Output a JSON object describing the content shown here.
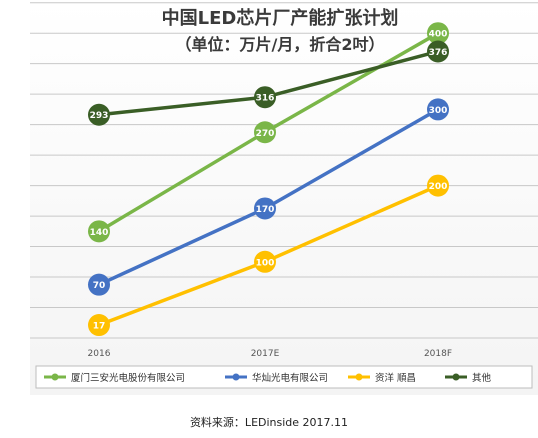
{
  "colors": {
    "xiamen": "#7ab648",
    "huacan": "#4472c4",
    "zisheng": "#ffc000",
    "other": "#3a5e26",
    "grid": "#c8c8c8",
    "title": "#3a3a3a"
  },
  "source_text": "资料来源：LEDinside 2017.11",
  "chart_data": {
    "type": "line",
    "title": "中国LED芯片厂产能扩张计划",
    "subtitle": "（单位：万片/月，折合2吋）",
    "categories": [
      "2016",
      "2017E",
      "2018F"
    ],
    "ylim": [
      0,
      440
    ],
    "grid": true,
    "legend_position": "bottom",
    "series": [
      {
        "name": "厦门三安光电股份有限公司",
        "color_key": "xiamen",
        "values": [
          140,
          270,
          400
        ],
        "labels": [
          "140",
          "270",
          "400"
        ]
      },
      {
        "name": "华灿光电有限公司",
        "color_key": "huacan",
        "values": [
          70,
          170,
          300
        ],
        "labels": [
          "70",
          "170",
          "300"
        ]
      },
      {
        "name": "资洋 順昌",
        "color_key": "zisheng",
        "values": [
          17,
          100,
          200
        ],
        "labels": [
          "17",
          "100",
          "200"
        ]
      },
      {
        "name": "其他",
        "color_key": "other",
        "values": [
          293,
          316,
          376
        ],
        "labels": [
          "293",
          "316",
          "376"
        ]
      }
    ]
  }
}
